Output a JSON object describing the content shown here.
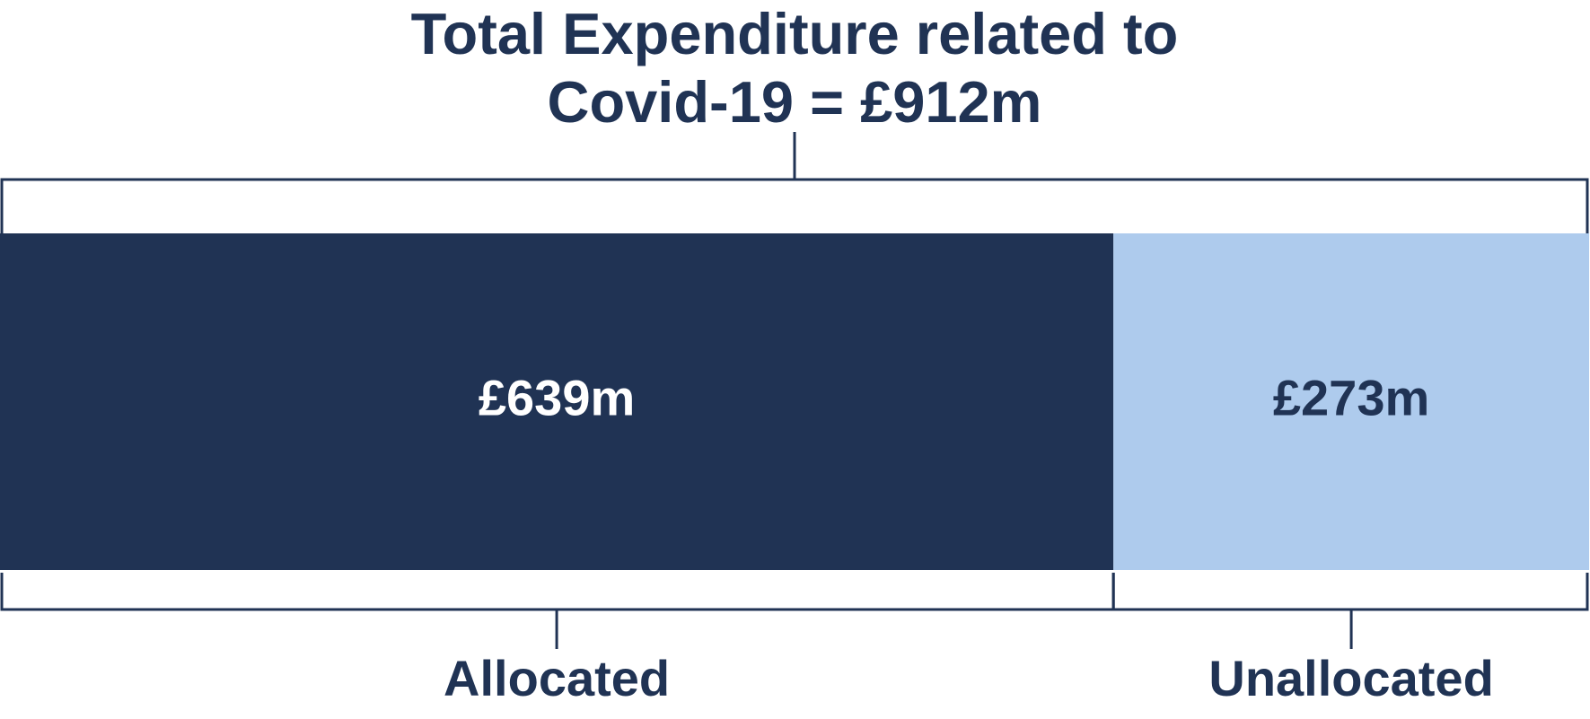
{
  "chart_data": {
    "type": "stacked-bar",
    "title": "Total Expenditure related to Covid-19 = £912m",
    "categories": [
      "Allocated",
      "Unallocated"
    ],
    "values": [
      639,
      273
    ],
    "value_labels": [
      "£639m",
      "£273m"
    ],
    "colors": [
      "#203354",
      "#aecbed"
    ]
  }
}
